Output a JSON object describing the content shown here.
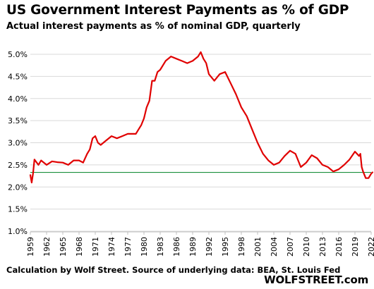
{
  "chart_data": {
    "type": "line",
    "title": "US Government Interest Payments as % of GDP",
    "subtitle": "Actual interest payments as % of nominal GDP, quarterly",
    "xlabel": "",
    "ylabel": "",
    "ylim": [
      1.0,
      5.0
    ],
    "xlim": [
      1959,
      2022
    ],
    "y_ticks": [
      "1.0%",
      "1.5%",
      "2.0%",
      "2.5%",
      "3.0%",
      "3.5%",
      "4.0%",
      "4.5%",
      "5.0%"
    ],
    "x_ticks": [
      "1959",
      "1962",
      "1965",
      "1968",
      "1971",
      "1974",
      "1977",
      "1980",
      "1983",
      "1986",
      "1989",
      "1992",
      "1995",
      "1998",
      "2001",
      "2004",
      "2007",
      "2010",
      "2013",
      "2016",
      "2019",
      "2022"
    ],
    "grid": "horizontal",
    "series": [
      {
        "color": "#e00000",
        "x": [
          1959.0,
          1959.25,
          1959.5,
          1959.75,
          1960.0,
          1960.5,
          1961.0,
          1962.0,
          1963.0,
          1964.0,
          1965.0,
          1966.0,
          1967.0,
          1968.0,
          1968.75,
          1969.5,
          1970.0,
          1970.5,
          1971.0,
          1971.5,
          1972.0,
          1973.0,
          1974.0,
          1975.0,
          1976.0,
          1977.0,
          1978.0,
          1978.5,
          1979.0,
          1979.5,
          1980.0,
          1980.5,
          1981.0,
          1981.5,
          1982.0,
          1982.5,
          1983.0,
          1984.0,
          1985.0,
          1986.0,
          1987.0,
          1988.0,
          1989.0,
          1990.0,
          1990.5,
          1991.0,
          1991.5,
          1992.0,
          1993.0,
          1994.0,
          1995.0,
          1996.0,
          1997.0,
          1998.0,
          1999.0,
          2000.0,
          2001.0,
          2002.0,
          2003.0,
          2004.0,
          2005.0,
          2006.0,
          2007.0,
          2008.0,
          2009.0,
          2010.0,
          2011.0,
          2012.0,
          2013.0,
          2014.0,
          2015.0,
          2016.0,
          2017.0,
          2018.0,
          2019.0,
          2019.75,
          2020.0,
          2020.25,
          2020.5,
          2021.0,
          2021.5,
          2022.0,
          2022.25
        ],
        "values": [
          2.27,
          2.1,
          2.3,
          2.62,
          2.58,
          2.5,
          2.6,
          2.5,
          2.58,
          2.56,
          2.55,
          2.5,
          2.6,
          2.6,
          2.55,
          2.75,
          2.85,
          3.1,
          3.15,
          3.0,
          2.95,
          3.05,
          3.15,
          3.1,
          3.15,
          3.2,
          3.2,
          3.2,
          3.3,
          3.4,
          3.55,
          3.8,
          3.95,
          4.4,
          4.4,
          4.6,
          4.65,
          4.85,
          4.95,
          4.9,
          4.85,
          4.8,
          4.85,
          4.95,
          5.05,
          4.9,
          4.8,
          4.55,
          4.4,
          4.55,
          4.6,
          4.35,
          4.1,
          3.8,
          3.6,
          3.3,
          3.0,
          2.75,
          2.6,
          2.5,
          2.55,
          2.7,
          2.82,
          2.75,
          2.45,
          2.55,
          2.72,
          2.65,
          2.5,
          2.45,
          2.35,
          2.4,
          2.5,
          2.62,
          2.8,
          2.7,
          2.75,
          2.45,
          2.35,
          2.2,
          2.2,
          2.3,
          2.33
        ]
      }
    ],
    "reference_line": {
      "y": 2.33,
      "color": "#1a8f3c"
    }
  },
  "footer": {
    "source": "Calculation by Wolf Street. Source of underlying data: BEA, St. Louis Fed",
    "brand": "WOLFSTREET.com"
  },
  "colors": {
    "line": "#e00000",
    "reference": "#1a8f3c",
    "grid": "#d9d9d9"
  }
}
